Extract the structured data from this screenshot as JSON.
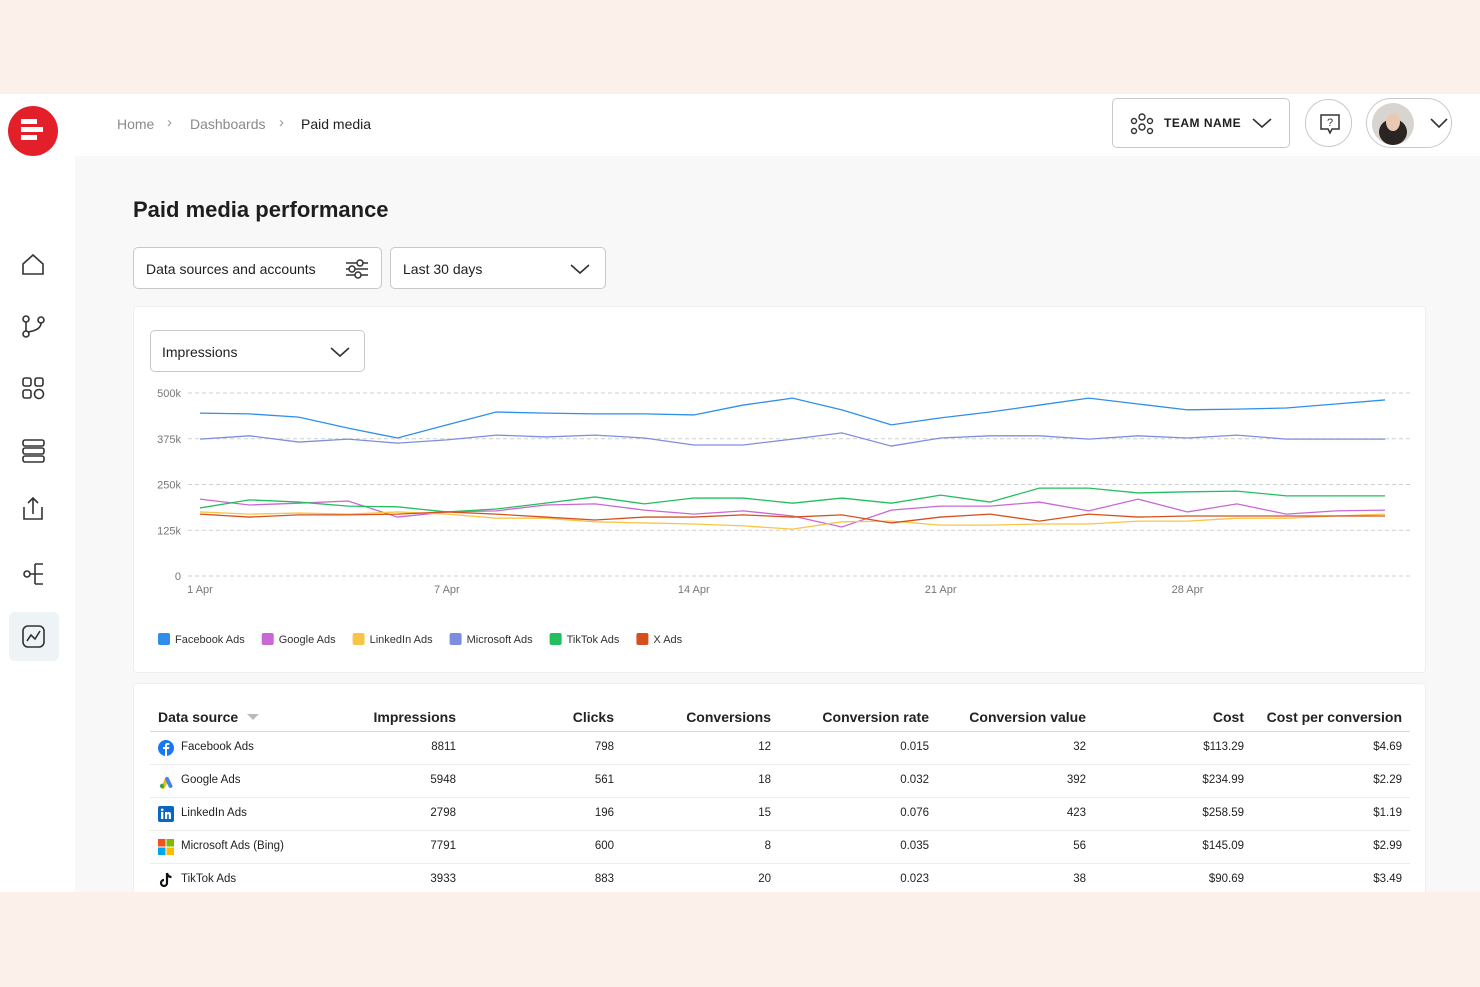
{
  "breadcrumb": [
    "Home",
    "Dashboards",
    "Paid media"
  ],
  "team_name": "TEAM NAME",
  "page_title": "Paid media performance",
  "filters": {
    "data_sources": "Data sources and accounts",
    "date_range": "Last 30 days"
  },
  "metric_select": "Impressions",
  "chart_data": {
    "type": "line",
    "categories": [
      "1 Apr",
      null,
      null,
      null,
      null,
      "7 Apr",
      null,
      null,
      null,
      null,
      "14 Apr",
      null,
      null,
      null,
      null,
      "21 Apr",
      null,
      null,
      null,
      null,
      "28 Apr",
      null,
      null,
      null,
      null
    ],
    "series": [
      {
        "name": "Facebook Ads",
        "color": "#2f8fe8",
        "values": [
          445000,
          443000,
          434000,
          404000,
          377000,
          413000,
          448000,
          445000,
          443000,
          443000,
          440000,
          467000,
          486000,
          454000,
          413000,
          432000,
          448000,
          467000,
          486000,
          470000,
          454000,
          456000,
          459000,
          470000,
          481000
        ]
      },
      {
        "name": "Google Ads",
        "color": "#c968d4",
        "values": [
          210000,
          194000,
          199000,
          205000,
          161000,
          175000,
          178000,
          194000,
          197000,
          180000,
          169000,
          178000,
          164000,
          134000,
          180000,
          191000,
          191000,
          202000,
          178000,
          210000,
          175000,
          197000,
          169000,
          178000,
          180000
        ]
      },
      {
        "name": "LinkedIn Ads",
        "color": "#f7c547",
        "values": [
          175000,
          169000,
          172000,
          169000,
          175000,
          169000,
          158000,
          158000,
          148000,
          145000,
          142000,
          137000,
          128000,
          148000,
          150000,
          139000,
          139000,
          142000,
          142000,
          150000,
          150000,
          158000,
          158000,
          164000,
          169000
        ]
      },
      {
        "name": "Microsoft Ads",
        "color": "#7e8ede",
        "values": [
          374000,
          383000,
          366000,
          374000,
          363000,
          372000,
          385000,
          380000,
          385000,
          377000,
          358000,
          358000,
          374000,
          391000,
          355000,
          377000,
          383000,
          383000,
          374000,
          383000,
          377000,
          385000,
          374000,
          374000,
          374000
        ]
      },
      {
        "name": "TikTok Ads",
        "color": "#22bf5f",
        "values": [
          186000,
          208000,
          202000,
          191000,
          189000,
          175000,
          183000,
          199000,
          216000,
          197000,
          213000,
          213000,
          199000,
          213000,
          199000,
          221000,
          202000,
          240000,
          240000,
          227000,
          230000,
          232000,
          219000,
          219000,
          219000
        ]
      },
      {
        "name": "X Ads",
        "color": "#d4511f",
        "values": [
          169000,
          161000,
          167000,
          167000,
          169000,
          175000,
          169000,
          161000,
          153000,
          161000,
          161000,
          167000,
          161000,
          167000,
          145000,
          161000,
          169000,
          150000,
          169000,
          161000,
          164000,
          164000,
          164000,
          164000,
          164000
        ]
      }
    ],
    "ylim": [
      0,
      500000
    ],
    "yticks": [
      0,
      {
        "value": 125000,
        "label": "125k"
      },
      {
        "value": 250000,
        "label": "250k"
      },
      {
        "value": 375000,
        "label": "375k"
      },
      {
        "value": 500000,
        "label": "500k"
      }
    ],
    "grid": true,
    "legend": "bottom-left"
  },
  "table": {
    "columns": [
      "Data source",
      "Impressions",
      "Clicks",
      "Conversions",
      "Conversion rate",
      "Conversion value",
      "Cost",
      "Cost per conversion"
    ],
    "rows": [
      [
        "Facebook Ads",
        8811,
        798,
        12,
        0.015,
        32,
        "$113.29",
        "$4.69"
      ],
      [
        "Google Ads",
        5948,
        561,
        18,
        0.032,
        392,
        "$234.99",
        "$2.29"
      ],
      [
        "LinkedIn Ads",
        2798,
        196,
        15,
        0.076,
        423,
        "$258.59",
        "$1.19"
      ],
      [
        "Microsoft Ads (Bing)",
        7791,
        600,
        8,
        0.035,
        56,
        "$145.09",
        "$2.99"
      ],
      [
        "TikTok Ads",
        3933,
        883,
        20,
        0.023,
        38,
        "$90.69",
        "$3.49"
      ]
    ]
  }
}
